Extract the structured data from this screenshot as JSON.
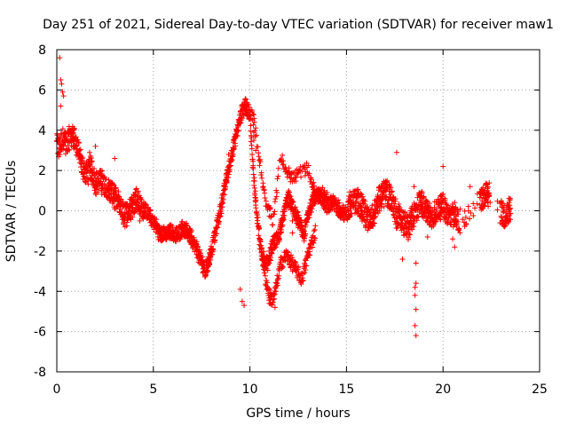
{
  "chart_data": {
    "type": "scatter",
    "title": "Day 251 of 2021, Sidereal Day-to-day VTEC variation (SDTVAR) for receiver maw1",
    "xlabel": "GPS time / hours",
    "ylabel": "SDTVAR / TECUs",
    "xlim": [
      0,
      25
    ],
    "ylim": [
      -8,
      8
    ],
    "xticks": [
      "0",
      "5",
      "10",
      "15",
      "20",
      "25"
    ],
    "yticks": [
      "-8",
      "-6",
      "-4",
      "-2",
      "0",
      "2",
      "4",
      "6",
      "8"
    ],
    "grid": true,
    "marker": "+",
    "color": "#ff0000",
    "series": [
      {
        "name": "SDTVAR",
        "profile": [
          [
            0.0,
            3.3
          ],
          [
            0.1,
            3.1
          ],
          [
            0.3,
            3.6
          ],
          [
            0.5,
            3.3
          ],
          [
            0.7,
            3.8
          ],
          [
            0.9,
            3.6
          ],
          [
            1.1,
            3.0
          ],
          [
            1.3,
            2.2
          ],
          [
            1.5,
            1.9
          ],
          [
            1.8,
            2.1
          ],
          [
            2.0,
            1.4
          ],
          [
            2.3,
            1.5
          ],
          [
            2.6,
            1.2
          ],
          [
            2.9,
            0.8
          ],
          [
            3.2,
            0.3
          ],
          [
            3.5,
            -0.2
          ],
          [
            3.8,
            0.1
          ],
          [
            4.1,
            0.6
          ],
          [
            4.4,
            0.2
          ],
          [
            4.7,
            -0.1
          ],
          [
            5.0,
            -0.5
          ],
          [
            5.3,
            -1.1
          ],
          [
            5.6,
            -1.2
          ],
          [
            5.9,
            -1.0
          ],
          [
            6.2,
            -1.2
          ],
          [
            6.5,
            -0.9
          ],
          [
            6.8,
            -1.1
          ],
          [
            7.1,
            -1.6
          ],
          [
            7.4,
            -2.3
          ],
          [
            7.7,
            -3.0
          ],
          [
            7.9,
            -2.4
          ],
          [
            8.2,
            -1.2
          ],
          [
            8.5,
            0.2
          ],
          [
            8.8,
            1.6
          ],
          [
            9.1,
            3.0
          ],
          [
            9.4,
            4.2
          ],
          [
            9.6,
            5.0
          ],
          [
            9.8,
            5.2
          ],
          [
            10.0,
            4.8
          ],
          [
            10.1,
            3.0
          ],
          [
            10.3,
            0.5
          ],
          [
            10.5,
            -1.5
          ],
          [
            10.7,
            -2.4
          ],
          [
            10.9,
            -2.6
          ],
          [
            11.2,
            -1.6
          ],
          [
            11.5,
            -1.3
          ],
          [
            11.8,
            0.1
          ],
          [
            12.0,
            0.6
          ],
          [
            12.2,
            0.2
          ],
          [
            12.5,
            -0.5
          ],
          [
            12.8,
            -1.2
          ],
          [
            13.0,
            -0.3
          ],
          [
            13.3,
            0.6
          ],
          [
            13.6,
            0.8
          ],
          [
            14.0,
            0.2
          ],
          [
            14.3,
            0.4
          ],
          [
            14.6,
            0.1
          ],
          [
            14.9,
            -0.2
          ],
          [
            15.2,
            0.3
          ],
          [
            15.5,
            0.5
          ],
          [
            15.8,
            0.2
          ],
          [
            16.1,
            -0.5
          ],
          [
            16.4,
            -0.2
          ],
          [
            16.7,
            0.6
          ],
          [
            17.0,
            1.0
          ],
          [
            17.3,
            0.6
          ],
          [
            17.6,
            -0.3
          ],
          [
            17.9,
            -0.5
          ],
          [
            18.2,
            -0.8
          ],
          [
            18.5,
            -0.2
          ],
          [
            18.8,
            0.4
          ],
          [
            19.1,
            0.1
          ],
          [
            19.4,
            -0.4
          ],
          [
            19.7,
            0.1
          ],
          [
            20.0,
            0.3
          ],
          [
            20.3,
            -0.3
          ],
          [
            20.6,
            -0.1
          ],
          [
            20.9,
            -0.6
          ],
          [
            21.3,
            0.0
          ],
          [
            21.7,
            0.2
          ],
          [
            22.1,
            0.7
          ],
          [
            22.4,
            0.9
          ],
          [
            22.8,
            0.2
          ],
          [
            23.2,
            -0.3
          ],
          [
            23.5,
            0.1
          ]
        ],
        "gaps": [
          [
            20.8,
            21.9
          ],
          [
            22.4,
            23.0
          ]
        ],
        "secondary_profile": [
          [
            10.6,
            -2.0
          ],
          [
            10.8,
            -3.3
          ],
          [
            11.0,
            -4.2
          ],
          [
            11.2,
            -4.5
          ],
          [
            11.4,
            -3.6
          ],
          [
            11.6,
            -2.6
          ],
          [
            11.9,
            -2.2
          ],
          [
            12.3,
            -2.8
          ],
          [
            12.7,
            -3.4
          ],
          [
            13.0,
            -2.2
          ],
          [
            13.4,
            -1.0
          ]
        ],
        "upper_branch": [
          [
            10.0,
            5.0
          ],
          [
            10.2,
            4.5
          ],
          [
            10.5,
            2.5
          ],
          [
            10.8,
            0.4
          ],
          [
            11.2,
            -0.5
          ],
          [
            11.6,
            2.8
          ],
          [
            11.9,
            2.0
          ],
          [
            12.2,
            1.6
          ],
          [
            12.6,
            1.9
          ],
          [
            13.0,
            2.1
          ],
          [
            13.4,
            0.8
          ],
          [
            14.0,
            0.9
          ]
        ],
        "outliers": [
          [
            0.15,
            7.6
          ],
          [
            0.2,
            6.5
          ],
          [
            0.25,
            6.3
          ],
          [
            0.3,
            5.9
          ],
          [
            0.35,
            5.7
          ],
          [
            0.2,
            5.2
          ],
          [
            9.6,
            -4.5
          ],
          [
            9.7,
            -4.7
          ],
          [
            9.5,
            -3.9
          ],
          [
            11.3,
            -4.8
          ],
          [
            11.0,
            -4.6
          ],
          [
            18.6,
            -2.6
          ],
          [
            18.6,
            -3.6
          ],
          [
            18.55,
            -3.8
          ],
          [
            18.55,
            -4.2
          ],
          [
            18.6,
            -4.9
          ],
          [
            18.55,
            -5.7
          ],
          [
            18.6,
            -6.2
          ],
          [
            17.6,
            2.9
          ],
          [
            18.5,
            1.2
          ],
          [
            20.0,
            2.2
          ],
          [
            21.4,
            1.2
          ],
          [
            20.5,
            -1.4
          ],
          [
            20.6,
            -1.8
          ],
          [
            19.2,
            -1.3
          ],
          [
            16.0,
            -0.8
          ],
          [
            17.9,
            -2.4
          ],
          [
            8.9,
            2.8
          ],
          [
            10.2,
            3.9
          ],
          [
            10.2,
            3.5
          ],
          [
            10.3,
            3.0
          ],
          [
            2.0,
            3.2
          ],
          [
            1.7,
            2.9
          ],
          [
            3.0,
            2.6
          ],
          [
            4.3,
            -0.5
          ],
          [
            12.2,
            -0.5
          ],
          [
            12.2,
            -1.1
          ]
        ]
      }
    ]
  }
}
